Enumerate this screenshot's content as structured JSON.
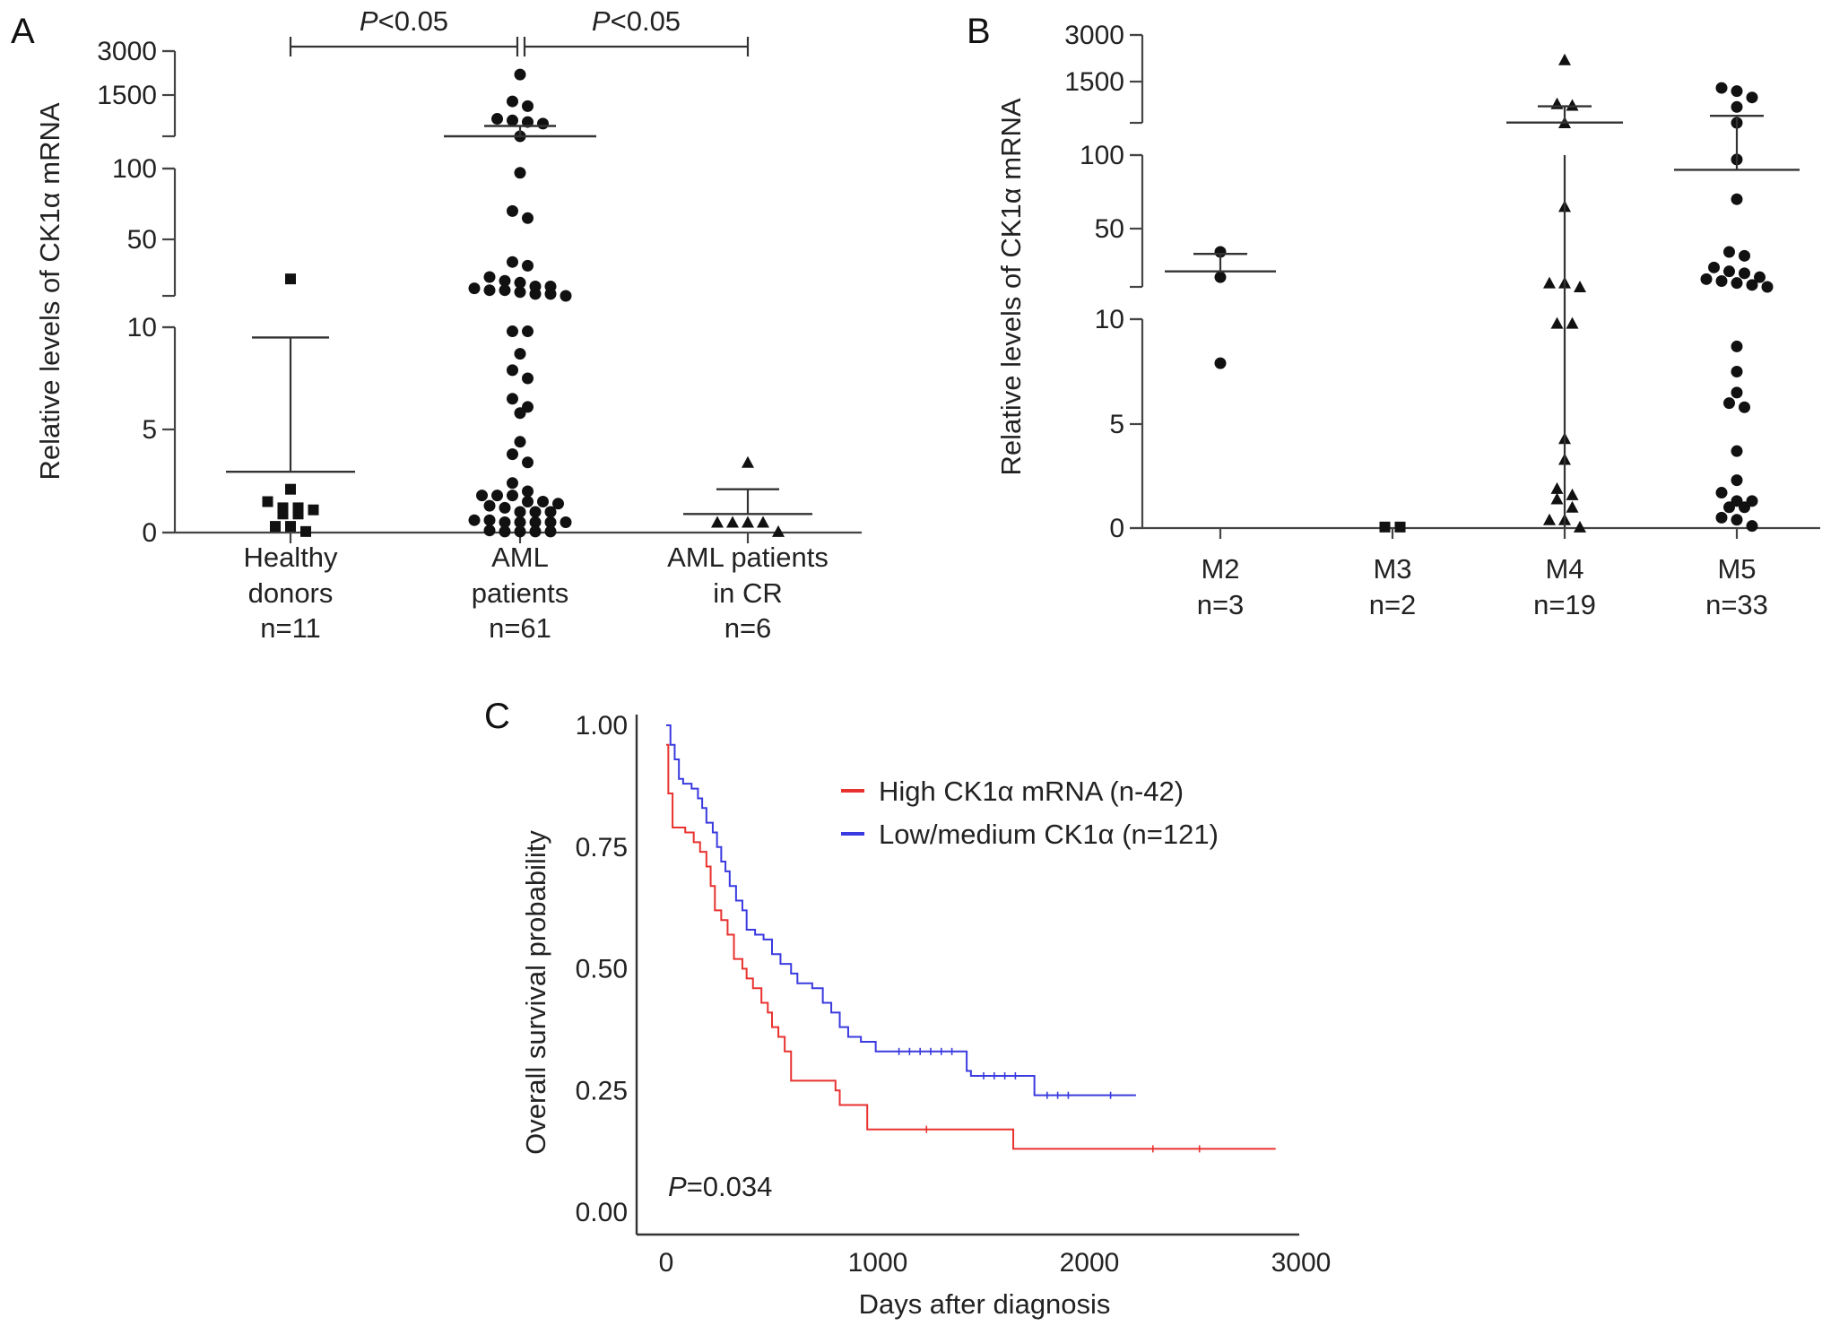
{
  "colors": {
    "axis": "#444444",
    "mark": "#111111",
    "high": "#e8322f",
    "low": "#3a3ae0"
  },
  "chart_data": [
    {
      "panel": "A",
      "type": "scatter",
      "ylabel": "Relative levels of CK1α mRNA",
      "y_ticks": [
        0,
        5,
        10,
        50,
        100,
        1500,
        3000
      ],
      "y_tick_labels": [
        "0",
        "5",
        "10",
        "50",
        "100",
        "1500",
        "3000"
      ],
      "y_segments": [
        [
          0,
          10
        ],
        [
          20,
          100
        ],
        [
          200,
          3000
        ]
      ],
      "groups": [
        {
          "label_lines": [
            "Healthy",
            "donors",
            "n=11"
          ],
          "marker": "square",
          "mean": 2.95,
          "err_high": 9.5,
          "values": [
            29,
            2.1,
            1.5,
            1.2,
            1.2,
            1.1,
            0.9,
            0.9,
            0.3,
            0.3,
            0.05
          ]
        },
        {
          "label_lines": [
            "AML",
            "patients",
            "n=61"
          ],
          "marker": "circle",
          "mean": 200,
          "err_high": 525,
          "values": [
            2200,
            1300,
            1150,
            750,
            700,
            650,
            600,
            200,
            97,
            70,
            65,
            38,
            36,
            30,
            28,
            27,
            25,
            25,
            24,
            23,
            23,
            22,
            21,
            21,
            20,
            9.8,
            9.8,
            8.7,
            7.9,
            7.5,
            6.5,
            6.1,
            5.8,
            4.4,
            3.8,
            3.4,
            2.4,
            2.0,
            1.8,
            1.8,
            1.8,
            1.5,
            1.5,
            1.4,
            1.3,
            1.2,
            1.0,
            1.0,
            1.0,
            0.6,
            0.6,
            0.5,
            0.5,
            0.5,
            0.5,
            0.5,
            0.1,
            0.05,
            0.05,
            0.05,
            0.05
          ]
        },
        {
          "label_lines": [
            "AML patients",
            "in CR",
            "n=6"
          ],
          "marker": "triangle",
          "mean": 0.9,
          "err_high": 2.1,
          "values": [
            3.4,
            0.5,
            0.5,
            0.5,
            0.5,
            0.05
          ]
        }
      ],
      "comparisons": [
        {
          "from": 0,
          "to": 1,
          "p_symbol": "P",
          "p_text": "<0.05"
        },
        {
          "from": 1,
          "to": 2,
          "p_symbol": "P",
          "p_text": "<0.05"
        }
      ]
    },
    {
      "panel": "B",
      "type": "scatter",
      "ylabel": "Relative levels of CK1α mRNA",
      "y_ticks": [
        0,
        5,
        10,
        50,
        100,
        1500,
        3000
      ],
      "y_tick_labels": [
        "0",
        "5",
        "10",
        "50",
        "100",
        "1500",
        "3000"
      ],
      "y_segments": [
        [
          0,
          10
        ],
        [
          20,
          100
        ],
        [
          200,
          3000
        ]
      ],
      "groups": [
        {
          "label_lines": [
            "M2",
            "n=3"
          ],
          "marker": "circle",
          "mean": 28,
          "err_high": 37,
          "values": [
            38,
            25,
            7.9
          ]
        },
        {
          "label_lines": [
            "M3",
            "n=2"
          ],
          "marker": "square",
          "mean": null,
          "err_high": null,
          "values": [
            0.05,
            0.05
          ]
        },
        {
          "label_lines": [
            "M4",
            "n=19"
          ],
          "marker": "triangle",
          "mean": 210,
          "err_high": 720,
          "err_low": 0,
          "values": [
            2200,
            800,
            750,
            200,
            65,
            22,
            22,
            19,
            9.8,
            9.8,
            4.3,
            3.3,
            1.9,
            1.6,
            1.4,
            1.0,
            0.4,
            0.4,
            0.05
          ]
        },
        {
          "label_lines": [
            "M5",
            "n=33"
          ],
          "marker": "circle",
          "mean": 90,
          "err_high": 420,
          "values": [
            1300,
            1200,
            1000,
            700,
            200,
            97,
            70,
            38,
            36,
            30,
            28,
            27,
            25,
            24,
            23,
            22,
            21,
            20,
            8.7,
            7.5,
            6.5,
            6.0,
            5.8,
            3.7,
            2.3,
            1.7,
            1.3,
            1.3,
            1.0,
            1.0,
            0.5,
            0.4,
            0.1
          ]
        }
      ]
    },
    {
      "panel": "C",
      "type": "line",
      "title": "",
      "xlabel": "Days after diagnosis",
      "ylabel": "Overall survival probability",
      "xlim": [
        0,
        3000
      ],
      "ylim": [
        0,
        1
      ],
      "x_ticks": [
        "0",
        "1000",
        "2000",
        "3000"
      ],
      "y_ticks": [
        "0.00",
        "0.25",
        "0.50",
        "0.75",
        "1.00"
      ],
      "legend_position": "top-right",
      "annotation": {
        "p_symbol": "P",
        "p_text": "=0.034"
      },
      "series": [
        {
          "name": "High CK1α mRNA (n-42)",
          "color_key": "high",
          "steps": [
            [
              0,
              0.96
            ],
            [
              10,
              0.86
            ],
            [
              30,
              0.79
            ],
            [
              90,
              0.78
            ],
            [
              130,
              0.76
            ],
            [
              160,
              0.74
            ],
            [
              190,
              0.71
            ],
            [
              210,
              0.67
            ],
            [
              230,
              0.62
            ],
            [
              260,
              0.6
            ],
            [
              290,
              0.57
            ],
            [
              320,
              0.52
            ],
            [
              360,
              0.5
            ],
            [
              380,
              0.48
            ],
            [
              410,
              0.46
            ],
            [
              450,
              0.43
            ],
            [
              480,
              0.41
            ],
            [
              500,
              0.38
            ],
            [
              530,
              0.36
            ],
            [
              560,
              0.33
            ],
            [
              590,
              0.27
            ],
            [
              800,
              0.25
            ],
            [
              820,
              0.22
            ],
            [
              950,
              0.17
            ],
            [
              1640,
              0.13
            ],
            [
              2880,
              0.13
            ]
          ],
          "censored": [
            1230,
            2300,
            2520
          ]
        },
        {
          "name": "Low/medium CK1α (n=121)",
          "color_key": "low",
          "steps": [
            [
              0,
              1.0
            ],
            [
              20,
              0.96
            ],
            [
              40,
              0.93
            ],
            [
              60,
              0.89
            ],
            [
              80,
              0.88
            ],
            [
              120,
              0.87
            ],
            [
              150,
              0.85
            ],
            [
              170,
              0.83
            ],
            [
              190,
              0.8
            ],
            [
              220,
              0.78
            ],
            [
              240,
              0.75
            ],
            [
              260,
              0.72
            ],
            [
              280,
              0.7
            ],
            [
              300,
              0.67
            ],
            [
              330,
              0.64
            ],
            [
              360,
              0.62
            ],
            [
              380,
              0.58
            ],
            [
              420,
              0.57
            ],
            [
              460,
              0.56
            ],
            [
              500,
              0.53
            ],
            [
              540,
              0.51
            ],
            [
              590,
              0.49
            ],
            [
              620,
              0.47
            ],
            [
              690,
              0.46
            ],
            [
              740,
              0.43
            ],
            [
              780,
              0.41
            ],
            [
              820,
              0.38
            ],
            [
              860,
              0.36
            ],
            [
              920,
              0.35
            ],
            [
              990,
              0.33
            ],
            [
              1420,
              0.29
            ],
            [
              1440,
              0.28
            ],
            [
              1740,
              0.24
            ],
            [
              2220,
              0.24
            ]
          ],
          "censored": [
            1100,
            1150,
            1200,
            1250,
            1300,
            1350,
            1500,
            1550,
            1600,
            1650,
            1800,
            1850,
            1900,
            2100
          ]
        }
      ]
    }
  ]
}
